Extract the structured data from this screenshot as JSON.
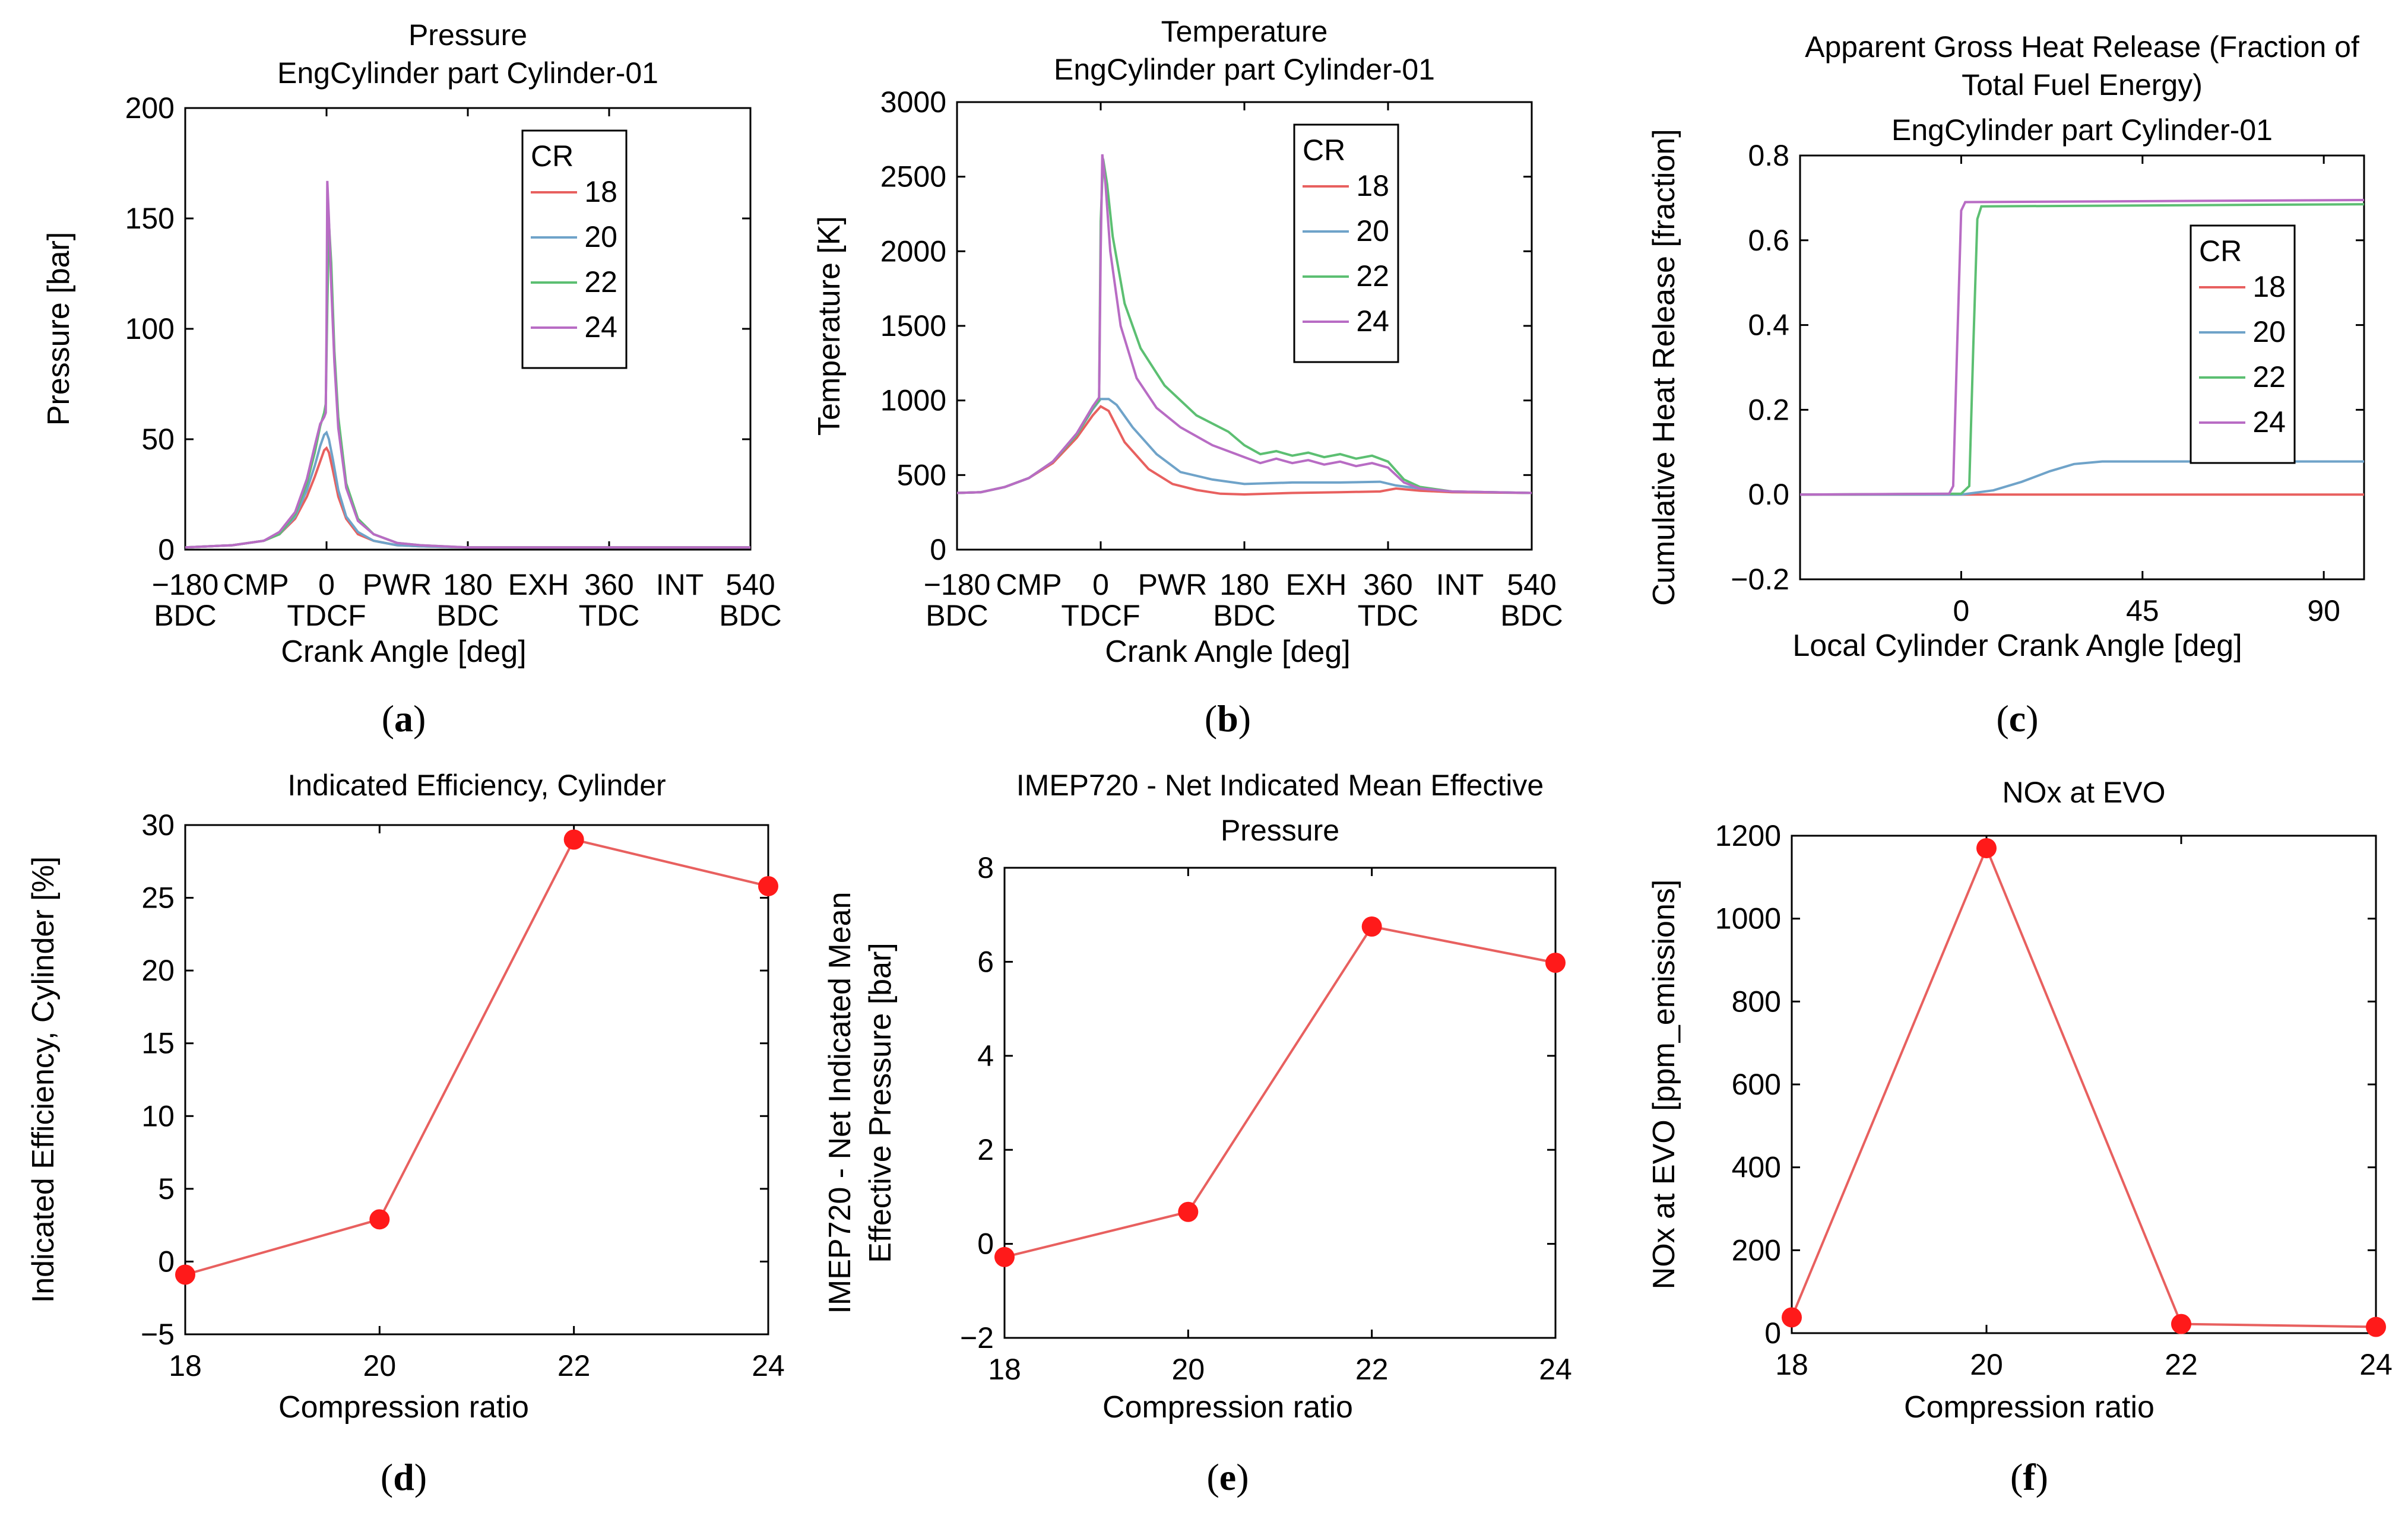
{
  "colors": {
    "cr18": "#e8605f",
    "cr20": "#6fa3c9",
    "cr22": "#5cbf72",
    "cr24": "#b86cc4",
    "marker": "#ff1a1a",
    "line": "#e8605f"
  },
  "chart_data": [
    {
      "id": "a",
      "type": "line",
      "caption_letter": "a",
      "title": [
        "Pressure",
        "EngCylinder part Cylinder-01"
      ],
      "xlabel": "Crank Angle [deg]",
      "ylabel": "Pressure [bar]",
      "xlim": [
        -180,
        540
      ],
      "ylim": [
        0,
        200
      ],
      "xticks": [
        {
          "value": -180,
          "top": "−180",
          "bottom": "BDC"
        },
        {
          "value": 0,
          "top": "0",
          "bottom": "TDCF"
        },
        {
          "value": 180,
          "top": "180",
          "bottom": "BDC"
        },
        {
          "value": 360,
          "top": "360",
          "bottom": "TDC"
        },
        {
          "value": 540,
          "top": "540",
          "bottom": "BDC"
        }
      ],
      "phase_labels": [
        {
          "value": -90,
          "label": "CMP"
        },
        {
          "value": 90,
          "label": "PWR"
        },
        {
          "value": 270,
          "label": "EXH"
        },
        {
          "value": 450,
          "label": "INT"
        }
      ],
      "yticks": [
        0,
        50,
        100,
        150,
        200
      ],
      "legend_title": "CR",
      "legend_position": "top-right",
      "series": [
        {
          "name": "18",
          "color_key": "cr18",
          "x": [
            -180,
            -120,
            -80,
            -60,
            -40,
            -25,
            -15,
            -8,
            -3,
            0,
            3,
            8,
            15,
            25,
            40,
            60,
            90,
            120,
            180,
            360,
            540
          ],
          "y": [
            1,
            2,
            4,
            7,
            14,
            24,
            33,
            40,
            45,
            46,
            44,
            36,
            24,
            14,
            7,
            4,
            2,
            1.5,
            1,
            1,
            1
          ]
        },
        {
          "name": "20",
          "color_key": "cr20",
          "x": [
            -180,
            -120,
            -80,
            -60,
            -40,
            -25,
            -15,
            -8,
            -3,
            0,
            3,
            8,
            15,
            25,
            40,
            60,
            90,
            120,
            180,
            360,
            540
          ],
          "y": [
            1,
            2,
            4,
            7,
            15,
            27,
            38,
            47,
            52,
            53,
            50,
            41,
            27,
            15,
            8,
            4,
            2,
            1.5,
            1,
            1,
            1
          ]
        },
        {
          "name": "22",
          "color_key": "cr22",
          "x": [
            -180,
            -120,
            -80,
            -60,
            -40,
            -25,
            -15,
            -8,
            -3,
            -1,
            1,
            3,
            6,
            10,
            15,
            25,
            40,
            60,
            90,
            120,
            180,
            360,
            540
          ],
          "y": [
            1,
            2,
            4,
            7,
            16,
            30,
            44,
            56,
            62,
            66,
            110,
            148,
            130,
            90,
            60,
            30,
            14,
            7,
            3,
            2,
            1,
            1,
            1
          ]
        },
        {
          "name": "24",
          "color_key": "cr24",
          "x": [
            -180,
            -120,
            -80,
            -60,
            -40,
            -25,
            -15,
            -8,
            -3,
            -1,
            0,
            1,
            3,
            6,
            10,
            15,
            25,
            40,
            60,
            90,
            120,
            180,
            360,
            540
          ],
          "y": [
            1,
            2,
            4,
            8,
            17,
            32,
            47,
            57,
            60,
            62,
            100,
            167,
            150,
            120,
            85,
            55,
            28,
            13,
            7,
            3,
            2,
            1,
            1,
            1
          ]
        }
      ]
    },
    {
      "id": "b",
      "type": "line",
      "caption_letter": "b",
      "title": [
        "Temperature",
        "EngCylinder part Cylinder-01"
      ],
      "xlabel": "Crank Angle [deg]",
      "ylabel": "Temperature [K]",
      "xlim": [
        -180,
        540
      ],
      "ylim": [
        0,
        3000
      ],
      "xticks": [
        {
          "value": -180,
          "top": "−180",
          "bottom": "BDC"
        },
        {
          "value": 0,
          "top": "0",
          "bottom": "TDCF"
        },
        {
          "value": 180,
          "top": "180",
          "bottom": "BDC"
        },
        {
          "value": 360,
          "top": "360",
          "bottom": "TDC"
        },
        {
          "value": 540,
          "top": "540",
          "bottom": "BDC"
        }
      ],
      "phase_labels": [
        {
          "value": -90,
          "label": "CMP"
        },
        {
          "value": 90,
          "label": "PWR"
        },
        {
          "value": 270,
          "label": "EXH"
        },
        {
          "value": 450,
          "label": "INT"
        }
      ],
      "yticks": [
        0,
        500,
        1000,
        1500,
        2000,
        2500,
        3000
      ],
      "legend_title": "CR",
      "legend_position": "top-right",
      "series": [
        {
          "name": "18",
          "color_key": "cr18",
          "x": [
            -180,
            -150,
            -120,
            -90,
            -60,
            -30,
            -10,
            0,
            10,
            30,
            60,
            90,
            120,
            150,
            180,
            240,
            300,
            350,
            370,
            400,
            440,
            540
          ],
          "y": [
            380,
            385,
            420,
            480,
            580,
            750,
            900,
            960,
            930,
            720,
            540,
            440,
            400,
            375,
            370,
            380,
            385,
            390,
            410,
            395,
            385,
            380
          ]
        },
        {
          "name": "20",
          "color_key": "cr20",
          "x": [
            -180,
            -150,
            -120,
            -90,
            -60,
            -30,
            -10,
            0,
            10,
            20,
            40,
            70,
            100,
            140,
            180,
            240,
            300,
            350,
            370,
            400,
            440,
            540
          ],
          "y": [
            380,
            385,
            420,
            480,
            590,
            770,
            940,
            1010,
            1010,
            970,
            820,
            640,
            520,
            470,
            440,
            450,
            450,
            455,
            430,
            410,
            390,
            380
          ]
        },
        {
          "name": "22",
          "color_key": "cr22",
          "x": [
            -180,
            -150,
            -120,
            -90,
            -60,
            -30,
            -10,
            -2,
            0,
            3,
            8,
            15,
            30,
            50,
            80,
            120,
            160,
            180,
            200,
            220,
            240,
            260,
            280,
            300,
            320,
            340,
            360,
            380,
            400,
            440,
            540
          ],
          "y": [
            380,
            385,
            420,
            480,
            590,
            770,
            950,
            1000,
            2200,
            2620,
            2450,
            2100,
            1650,
            1350,
            1100,
            900,
            790,
            700,
            640,
            660,
            630,
            650,
            620,
            640,
            610,
            630,
            590,
            470,
            420,
            390,
            380
          ]
        },
        {
          "name": "24",
          "color_key": "cr24",
          "x": [
            -180,
            -150,
            -120,
            -90,
            -60,
            -30,
            -10,
            -2,
            0,
            2,
            6,
            12,
            25,
            45,
            70,
            100,
            140,
            180,
            200,
            220,
            240,
            260,
            280,
            300,
            320,
            340,
            360,
            380,
            400,
            440,
            540
          ],
          "y": [
            380,
            385,
            420,
            480,
            590,
            780,
            960,
            1020,
            2000,
            2650,
            2450,
            2000,
            1500,
            1150,
            950,
            820,
            700,
            620,
            580,
            610,
            580,
            600,
            570,
            590,
            560,
            580,
            550,
            450,
            410,
            390,
            380
          ]
        }
      ]
    },
    {
      "id": "c",
      "type": "line",
      "caption_letter": "c",
      "title": [
        "Apparent Gross Heat Release (Fraction of",
        "Total Fuel Energy)",
        "EngCylinder part Cylinder-01"
      ],
      "xlabel": "Local Cylinder Crank Angle [deg]",
      "ylabel": "Cumulative Heat Release [fraction]",
      "xlim": [
        -40,
        100
      ],
      "ylim": [
        -0.2,
        0.8
      ],
      "xticks": [
        {
          "value": 0,
          "top": "0",
          "bottom": ""
        },
        {
          "value": 45,
          "top": "45",
          "bottom": ""
        },
        {
          "value": 90,
          "top": "90",
          "bottom": ""
        }
      ],
      "phase_labels": [],
      "yticks": [
        -0.2,
        0.0,
        0.2,
        0.4,
        0.6,
        0.8
      ],
      "ytick_labels": [
        "−0.2",
        "0.0",
        "0.2",
        "0.4",
        "0.6",
        "0.8"
      ],
      "legend_title": "CR",
      "legend_position": "center-right",
      "series": [
        {
          "name": "18",
          "color_key": "cr18",
          "x": [
            -40,
            100
          ],
          "y": [
            0,
            0
          ]
        },
        {
          "name": "20",
          "color_key": "cr20",
          "x": [
            -40,
            0,
            8,
            15,
            22,
            28,
            35,
            100
          ],
          "y": [
            0,
            0,
            0.01,
            0.03,
            0.055,
            0.072,
            0.078,
            0.078
          ]
        },
        {
          "name": "22",
          "color_key": "cr22",
          "x": [
            -40,
            0,
            2,
            3,
            4,
            5,
            100
          ],
          "y": [
            0,
            0.002,
            0.02,
            0.35,
            0.65,
            0.68,
            0.685
          ]
        },
        {
          "name": "24",
          "color_key": "cr24",
          "x": [
            -40,
            -3,
            -2,
            -1,
            0,
            1,
            100
          ],
          "y": [
            0,
            0.002,
            0.02,
            0.35,
            0.67,
            0.69,
            0.695
          ]
        }
      ]
    },
    {
      "id": "d",
      "type": "line",
      "caption_letter": "d",
      "title": [
        "Indicated Efficiency, Cylinder"
      ],
      "xlabel": "Compression ratio",
      "ylabel": "Indicated Efficiency, Cylinder [%]",
      "xlim": [
        18,
        24
      ],
      "ylim": [
        -5,
        30
      ],
      "xtick_values": [
        18,
        20,
        22,
        24
      ],
      "yticks": [
        -5,
        0,
        5,
        10,
        15,
        20,
        25,
        30
      ],
      "ytick_labels": [
        "−5",
        "0",
        "5",
        "10",
        "15",
        "20",
        "25",
        "30"
      ],
      "x": [
        18,
        20,
        22,
        24
      ],
      "y": [
        -0.9,
        2.9,
        29.0,
        25.8
      ]
    },
    {
      "id": "e",
      "type": "line",
      "caption_letter": "e",
      "title": [
        "IMEP720 - Net Indicated Mean Effective",
        "Pressure"
      ],
      "xlabel": "Compression ratio",
      "ylabel": [
        "IMEP720 - Net Indicated Mean",
        "Effective Pressure [bar]"
      ],
      "xlim": [
        18,
        24
      ],
      "ylim": [
        -2,
        8
      ],
      "xtick_values": [
        18,
        20,
        22,
        24
      ],
      "yticks": [
        -2,
        0,
        2,
        4,
        6,
        8
      ],
      "ytick_labels": [
        "−2",
        "0",
        "2",
        "4",
        "6",
        "8"
      ],
      "x": [
        18,
        20,
        22,
        24
      ],
      "y": [
        -0.28,
        0.68,
        6.75,
        5.98
      ]
    },
    {
      "id": "f",
      "type": "line",
      "caption_letter": "f",
      "title": [
        "NOx at EVO"
      ],
      "xlabel": "Compression ratio",
      "ylabel": "NOx at EVO [ppm_emissions]",
      "xlim": [
        18,
        24
      ],
      "ylim": [
        0,
        1200
      ],
      "xtick_values": [
        18,
        20,
        22,
        24
      ],
      "yticks": [
        0,
        200,
        400,
        600,
        800,
        1000,
        1200
      ],
      "ytick_labels": [
        "0",
        "200",
        "400",
        "600",
        "800",
        "1000",
        "1200"
      ],
      "x": [
        18,
        20,
        22,
        24
      ],
      "y": [
        38,
        1170,
        22,
        15
      ]
    }
  ]
}
